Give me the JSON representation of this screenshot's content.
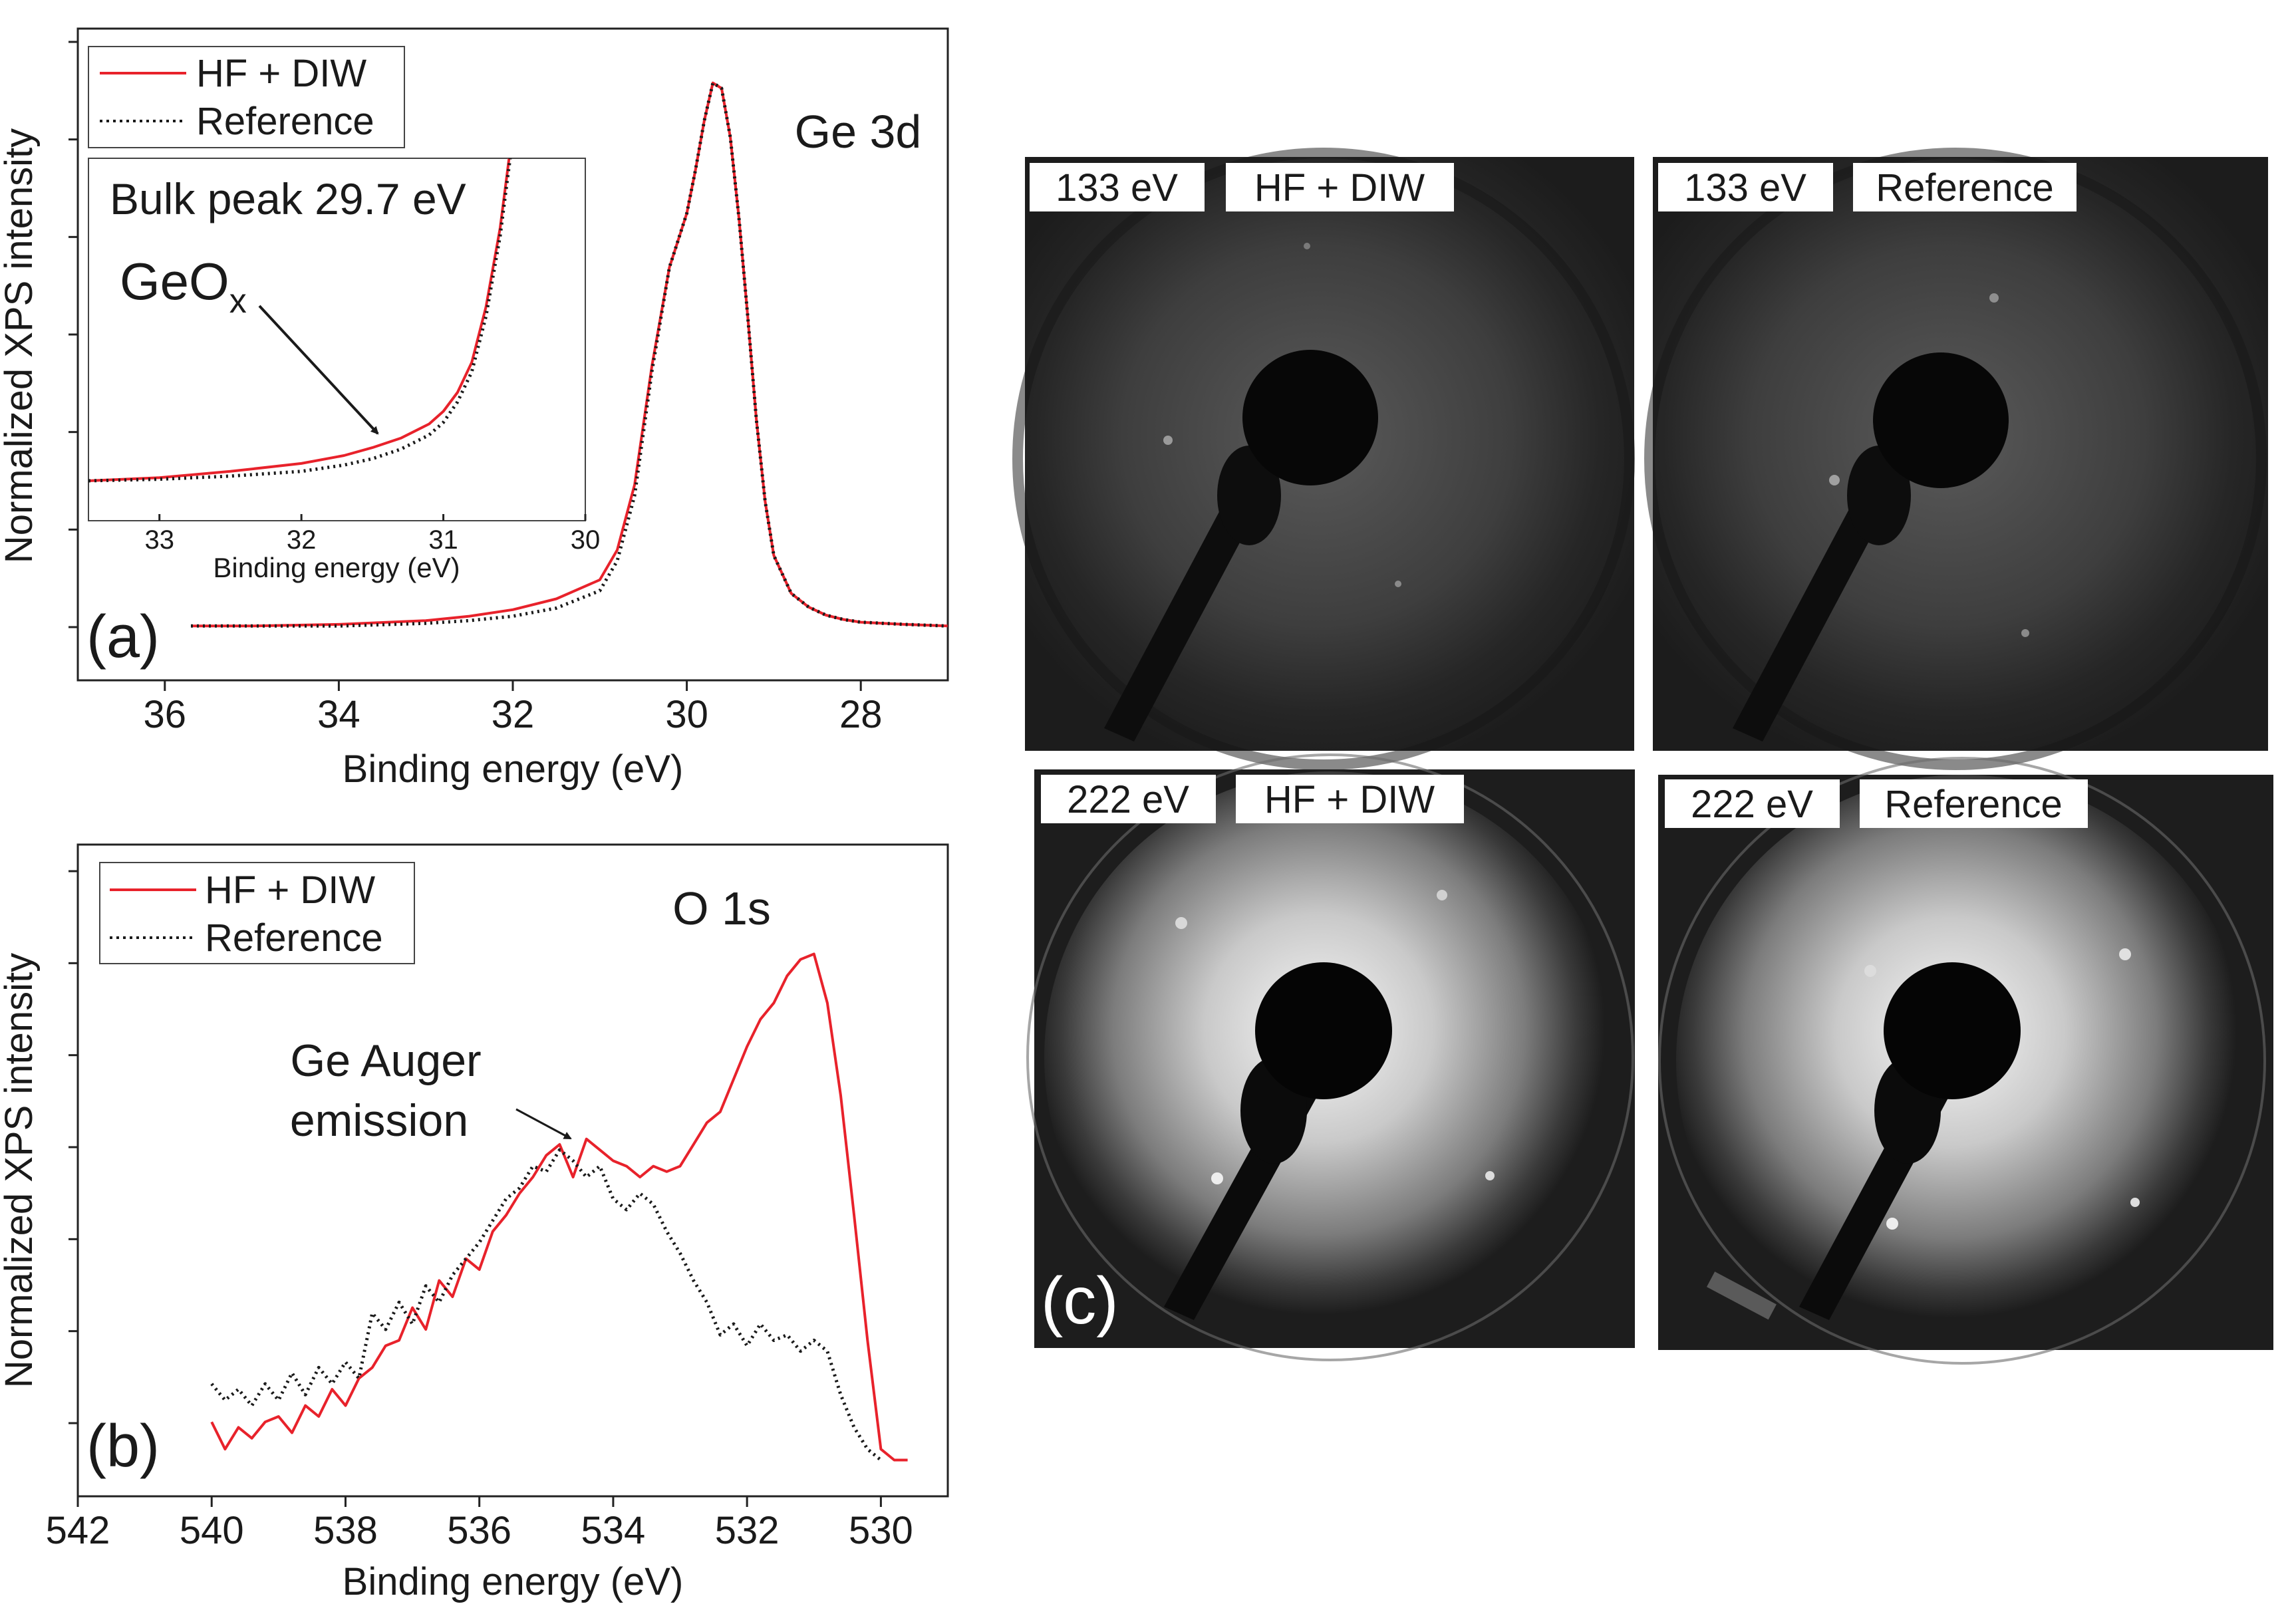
{
  "colors": {
    "hf": "#e8222b",
    "ref": "#1a1a1a",
    "axis": "#222222",
    "panel_dark": "#1e1e1e"
  },
  "legend": {
    "hf": "HF + DIW",
    "ref": "Reference"
  },
  "chart_data": [
    {
      "id": "a",
      "type": "line",
      "panel_label": "(a)",
      "title": "Ge 3d",
      "xlabel": "Binding energy (eV)",
      "ylabel": "Normalized XPS intensity",
      "xlim": [
        37.0,
        27.0
      ],
      "ylim": [
        -0.1,
        1.1
      ],
      "xticks": [
        36,
        34,
        32,
        30,
        28
      ],
      "series": [
        {
          "name": "HF + DIW",
          "x": [
            35.7,
            35.0,
            34.0,
            33.0,
            32.5,
            32.0,
            31.5,
            31.0,
            30.8,
            30.6,
            30.4,
            30.2,
            30.0,
            29.9,
            29.8,
            29.7,
            29.6,
            29.5,
            29.4,
            29.3,
            29.2,
            29.1,
            29.0,
            28.8,
            28.6,
            28.4,
            28.2,
            28.0,
            27.5,
            27.0
          ],
          "y": [
            0.0,
            0.0,
            0.003,
            0.01,
            0.018,
            0.03,
            0.05,
            0.085,
            0.14,
            0.26,
            0.48,
            0.66,
            0.76,
            0.84,
            0.93,
            1.0,
            0.99,
            0.9,
            0.75,
            0.57,
            0.38,
            0.23,
            0.13,
            0.06,
            0.035,
            0.02,
            0.012,
            0.007,
            0.003,
            0.0
          ]
        },
        {
          "name": "Reference",
          "x": [
            35.7,
            35.0,
            34.0,
            33.0,
            32.5,
            32.0,
            31.5,
            31.0,
            30.8,
            30.6,
            30.4,
            30.2,
            30.0,
            29.9,
            29.8,
            29.7,
            29.6,
            29.5,
            29.4,
            29.3,
            29.2,
            29.1,
            29.0,
            28.8,
            28.6,
            28.4,
            28.2,
            28.0,
            27.5,
            27.0
          ],
          "y": [
            0.0,
            0.0,
            0.0,
            0.005,
            0.01,
            0.018,
            0.033,
            0.065,
            0.12,
            0.24,
            0.47,
            0.66,
            0.76,
            0.84,
            0.93,
            1.0,
            0.99,
            0.9,
            0.75,
            0.57,
            0.38,
            0.23,
            0.13,
            0.06,
            0.035,
            0.02,
            0.012,
            0.007,
            0.003,
            0.0
          ]
        }
      ],
      "inset": {
        "annotation": "Bulk peak 29.7 eV",
        "arrow_label": "GeO",
        "arrow_label_sub": "x",
        "xlabel": "Binding energy (eV)",
        "xlim": [
          33.5,
          30.0
        ],
        "ylim": [
          0,
          0.2
        ],
        "xticks": [
          33,
          32,
          31,
          30
        ],
        "series": [
          {
            "name": "HF + DIW",
            "x": [
              33.5,
              33.0,
              32.5,
              32.0,
              31.7,
              31.5,
              31.3,
              31.1,
              31.0,
              30.9,
              30.8,
              30.7,
              30.6,
              30.5
            ],
            "y": [
              0.0,
              0.002,
              0.006,
              0.011,
              0.016,
              0.021,
              0.027,
              0.036,
              0.044,
              0.056,
              0.075,
              0.11,
              0.16,
              0.23
            ]
          },
          {
            "name": "Reference",
            "x": [
              33.5,
              33.0,
              32.5,
              32.0,
              31.7,
              31.5,
              31.3,
              31.1,
              31.0,
              30.9,
              30.8,
              30.7,
              30.6,
              30.5
            ],
            "y": [
              0.0,
              0.001,
              0.003,
              0.006,
              0.01,
              0.014,
              0.02,
              0.029,
              0.037,
              0.05,
              0.069,
              0.104,
              0.155,
              0.225
            ]
          }
        ]
      }
    },
    {
      "id": "b",
      "type": "line",
      "panel_label": "(b)",
      "title": "O 1s",
      "annotation": [
        "Ge Auger",
        "emission"
      ],
      "xlabel": "Binding energy (eV)",
      "ylabel": "Normalized XPS intensity",
      "xlim": [
        542,
        529
      ],
      "ylim": [
        -0.05,
        1.05
      ],
      "xticks": [
        542,
        540,
        538,
        536,
        534,
        532,
        530
      ],
      "series": [
        {
          "name": "HF + DIW",
          "x": [
            540.0,
            539.8,
            539.6,
            539.4,
            539.2,
            539.0,
            538.8,
            538.6,
            538.4,
            538.2,
            538.0,
            537.8,
            537.6,
            537.4,
            537.2,
            537.0,
            536.8,
            536.6,
            536.4,
            536.2,
            536.0,
            535.8,
            535.6,
            535.4,
            535.2,
            535.0,
            534.8,
            534.6,
            534.4,
            534.2,
            534.0,
            533.8,
            533.6,
            533.4,
            533.2,
            533.0,
            532.8,
            532.6,
            532.4,
            532.2,
            532.0,
            531.8,
            531.6,
            531.4,
            531.2,
            531.0,
            530.8,
            530.6,
            530.4,
            530.2,
            530.0,
            529.8,
            529.6
          ],
          "y": [
            0.05,
            0.0,
            0.04,
            0.02,
            0.05,
            0.06,
            0.03,
            0.08,
            0.06,
            0.11,
            0.08,
            0.13,
            0.15,
            0.19,
            0.2,
            0.26,
            0.22,
            0.31,
            0.28,
            0.35,
            0.33,
            0.4,
            0.43,
            0.47,
            0.5,
            0.54,
            0.56,
            0.5,
            0.57,
            0.55,
            0.53,
            0.52,
            0.5,
            0.52,
            0.51,
            0.52,
            0.56,
            0.6,
            0.62,
            0.68,
            0.74,
            0.79,
            0.82,
            0.87,
            0.9,
            0.91,
            0.82,
            0.65,
            0.43,
            0.2,
            0.0,
            -0.02,
            -0.02
          ]
        },
        {
          "name": "Reference",
          "x": [
            540.0,
            539.8,
            539.6,
            539.4,
            539.2,
            539.0,
            538.8,
            538.6,
            538.4,
            538.2,
            538.0,
            537.8,
            537.6,
            537.4,
            537.2,
            537.0,
            536.8,
            536.6,
            536.4,
            536.2,
            536.0,
            535.8,
            535.6,
            535.4,
            535.2,
            535.0,
            534.8,
            534.6,
            534.4,
            534.2,
            534.0,
            533.8,
            533.6,
            533.4,
            533.2,
            533.0,
            532.8,
            532.6,
            532.4,
            532.2,
            532.0,
            531.8,
            531.6,
            531.4,
            531.2,
            531.0,
            530.8,
            530.6,
            530.4,
            530.2,
            530.0
          ],
          "y": [
            0.12,
            0.09,
            0.11,
            0.08,
            0.12,
            0.09,
            0.14,
            0.1,
            0.15,
            0.12,
            0.16,
            0.13,
            0.25,
            0.22,
            0.27,
            0.23,
            0.3,
            0.27,
            0.32,
            0.35,
            0.38,
            0.42,
            0.46,
            0.48,
            0.52,
            0.51,
            0.55,
            0.53,
            0.5,
            0.52,
            0.46,
            0.44,
            0.47,
            0.45,
            0.4,
            0.36,
            0.31,
            0.27,
            0.21,
            0.23,
            0.19,
            0.23,
            0.2,
            0.21,
            0.18,
            0.2,
            0.18,
            0.1,
            0.04,
            0.0,
            -0.02
          ]
        }
      ]
    }
  ],
  "leed": {
    "panel_label": "(c)",
    "panels": [
      {
        "energy": "133 eV",
        "sample": "HF + DIW"
      },
      {
        "energy": "133 eV",
        "sample": "Reference"
      },
      {
        "energy": "222 eV",
        "sample": "HF + DIW"
      },
      {
        "energy": "222 eV",
        "sample": "Reference"
      }
    ]
  }
}
